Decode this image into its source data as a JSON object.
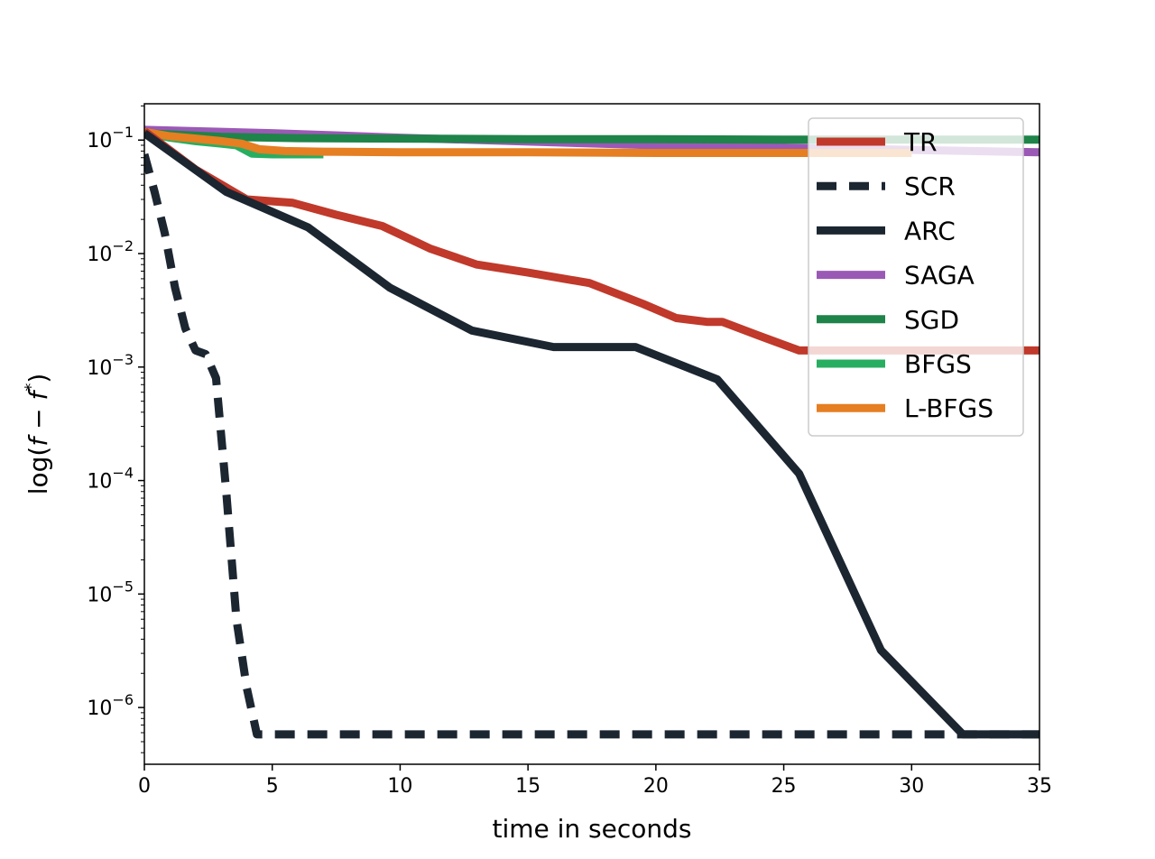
{
  "chart_data": {
    "type": "line",
    "title": "",
    "xlabel": "time in seconds",
    "ylabel": "log(f − f*)",
    "ylabel_parts": {
      "prefix": "log(",
      "f1": "f",
      "minus": " − ",
      "f2": "f",
      "star": "*",
      "suffix": ")"
    },
    "xlim": [
      0,
      35
    ],
    "ylim_log10": [
      -6.5,
      -0.68
    ],
    "yscale": "log",
    "grid": false,
    "legend_position": "top-right",
    "x_ticks": [
      0,
      5,
      10,
      15,
      20,
      25,
      30,
      35
    ],
    "y_ticks": [
      {
        "exp": -1,
        "base": "10",
        "sup": "−1"
      },
      {
        "exp": -2,
        "base": "10",
        "sup": "−2"
      },
      {
        "exp": -3,
        "base": "10",
        "sup": "−3"
      },
      {
        "exp": -4,
        "base": "10",
        "sup": "−4"
      },
      {
        "exp": -5,
        "base": "10",
        "sup": "−5"
      },
      {
        "exp": -6,
        "base": "10",
        "sup": "−6"
      }
    ],
    "series": [
      {
        "name": "SAGA",
        "color": "#9b59b6",
        "dash": "",
        "x": [
          0,
          5,
          10,
          15,
          20,
          25,
          30,
          35
        ],
        "y": [
          0.123,
          0.115,
          0.105,
          0.097,
          0.09,
          0.086,
          0.082,
          0.078
        ]
      },
      {
        "name": "SGD",
        "color": "#1e8449",
        "dash": "",
        "x": [
          0,
          3,
          6,
          10,
          15,
          20,
          25,
          30,
          35
        ],
        "y": [
          0.115,
          0.107,
          0.104,
          0.103,
          0.102,
          0.102,
          0.101,
          0.101,
          0.101
        ]
      },
      {
        "name": "BFGS",
        "color": "#27ae60",
        "dash": "",
        "x": [
          0,
          1,
          2,
          3,
          3.6,
          4.2,
          5,
          6,
          7
        ],
        "y": [
          0.118,
          0.105,
          0.098,
          0.093,
          0.09,
          0.076,
          0.075,
          0.075,
          0.075
        ]
      },
      {
        "name": "L-BFGS",
        "color": "#e67e22",
        "dash": "",
        "x": [
          0,
          1,
          2,
          3,
          3.8,
          4.5,
          5.5,
          7,
          10,
          15,
          20,
          25,
          30
        ],
        "y": [
          0.118,
          0.108,
          0.103,
          0.098,
          0.093,
          0.083,
          0.08,
          0.079,
          0.078,
          0.078,
          0.077,
          0.077,
          0.077
        ]
      },
      {
        "name": "TR",
        "color": "#c0392b",
        "dash": "",
        "x": [
          0,
          2,
          4,
          5.8,
          7.5,
          9.3,
          11.2,
          13,
          15,
          17.4,
          19.5,
          20.8,
          22,
          22.6,
          24,
          25.6,
          27,
          30,
          35
        ],
        "y": [
          0.12,
          0.055,
          0.03,
          0.028,
          0.022,
          0.0175,
          0.011,
          0.008,
          0.0068,
          0.0055,
          0.0036,
          0.0027,
          0.0025,
          0.0025,
          0.0019,
          0.0014,
          0.0014,
          0.0014,
          0.0014
        ]
      },
      {
        "name": "ARC",
        "color": "#1b2631",
        "dash": "",
        "x": [
          0,
          3.2,
          6.4,
          9.6,
          12.8,
          16,
          19.2,
          22.4,
          25.6,
          28.8,
          32,
          35
        ],
        "y": [
          0.115,
          0.035,
          0.017,
          0.005,
          0.0021,
          0.0015,
          0.0015,
          0.00078,
          0.000115,
          3.2e-06,
          5.8e-07,
          5.8e-07
        ]
      },
      {
        "name": "SCR",
        "color": "#1b2631",
        "dash": "22,14",
        "x": [
          0,
          0.4,
          0.8,
          1.2,
          1.6,
          2,
          2.4,
          2.8,
          3.2,
          3.6,
          4,
          4.4,
          6,
          10,
          15,
          20,
          25,
          30,
          35
        ],
        "y": [
          0.075,
          0.035,
          0.015,
          0.005,
          0.0022,
          0.0014,
          0.0013,
          0.0008,
          8e-05,
          6e-06,
          1.5e-06,
          5.8e-07,
          5.8e-07,
          5.8e-07,
          5.8e-07,
          5.8e-07,
          5.8e-07,
          5.8e-07,
          5.8e-07
        ]
      }
    ],
    "legend_order": [
      "TR",
      "SCR",
      "ARC",
      "SAGA",
      "SGD",
      "BFGS",
      "L-BFGS"
    ]
  }
}
